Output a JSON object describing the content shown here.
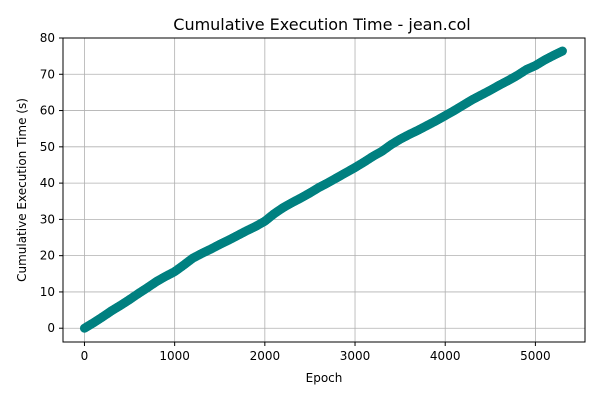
{
  "chart_data": {
    "type": "scatter",
    "title": "Cumulative Execution Time - jean.col",
    "xlabel": "Epoch",
    "ylabel": "Cumulative Execution Time (s)",
    "xlim": [
      -238,
      5550
    ],
    "ylim": [
      -3.8,
      80
    ],
    "x_ticks": [
      0,
      1000,
      2000,
      3000,
      4000,
      5000
    ],
    "y_ticks": [
      0,
      10,
      20,
      30,
      40,
      50,
      60,
      70,
      80
    ],
    "grid": true,
    "colors": {
      "points": "#008080"
    },
    "series": [
      {
        "x": [
          0,
          100,
          200,
          300,
          400,
          500,
          600,
          700,
          800,
          900,
          1000,
          1100,
          1200,
          1300,
          1400,
          1500,
          1600,
          1700,
          1800,
          1900,
          2000,
          2100,
          2200,
          2300,
          2400,
          2500,
          2600,
          2700,
          2800,
          2900,
          3000,
          3100,
          3200,
          3300,
          3400,
          3500,
          3600,
          3700,
          3800,
          3900,
          4000,
          4100,
          4200,
          4300,
          4400,
          4500,
          4600,
          4700,
          4800,
          4900,
          5000,
          5100,
          5200,
          5300
        ],
        "values": [
          0,
          1.5,
          3.1,
          4.8,
          6.3,
          7.9,
          9.6,
          11.2,
          12.9,
          14.3,
          15.6,
          17.4,
          19.3,
          20.6,
          21.8,
          23.1,
          24.3,
          25.6,
          26.9,
          28.1,
          29.5,
          31.5,
          33.2,
          34.6,
          35.9,
          37.3,
          38.8,
          40.1,
          41.5,
          42.9,
          44.3,
          45.8,
          47.4,
          48.8,
          50.6,
          52.1,
          53.4,
          54.6,
          55.9,
          57.2,
          58.6,
          60.0,
          61.5,
          63.0,
          64.3,
          65.6,
          67.0,
          68.3,
          69.7,
          71.3,
          72.4,
          73.9,
          75.2,
          76.4
        ]
      }
    ]
  }
}
